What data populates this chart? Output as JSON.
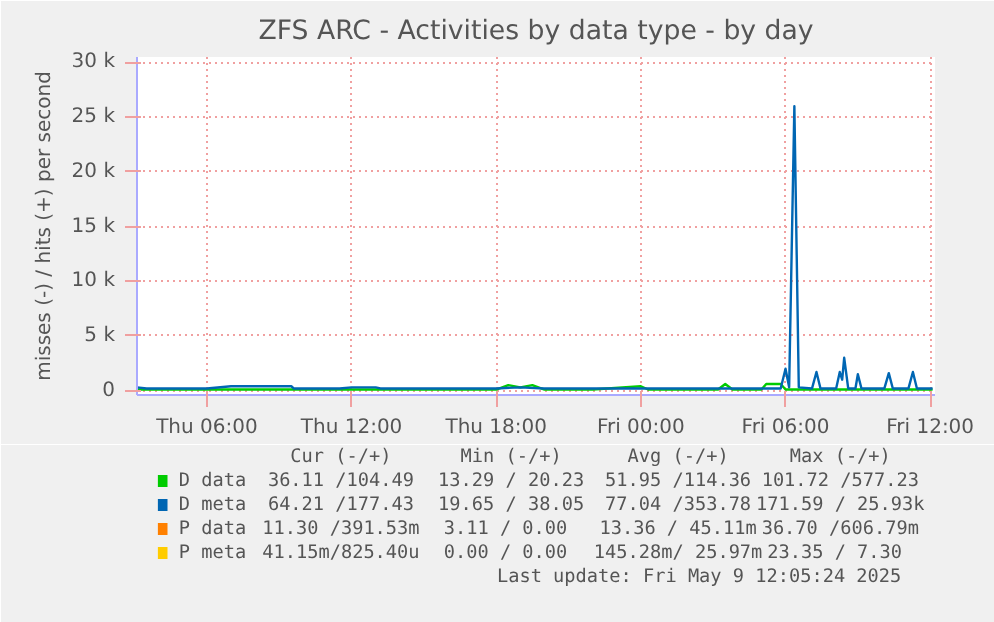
{
  "chart_data": {
    "type": "line",
    "title": "ZFS ARC - Activities by data type - by day",
    "ylabel": "misses (-) / hits (+) per second",
    "xlim": [
      "2025-05-08T03:06",
      "2025-05-09T12:12"
    ],
    "ylim": [
      -400,
      30500
    ],
    "xticks": [
      {
        "value": "2025-05-08T06:00",
        "label": "Thu 06:00"
      },
      {
        "value": "2025-05-08T12:00",
        "label": "Thu 12:00"
      },
      {
        "value": "2025-05-08T18:00",
        "label": "Thu 18:00"
      },
      {
        "value": "2025-05-09T00:00",
        "label": "Fri 00:00"
      },
      {
        "value": "2025-05-09T06:00",
        "label": "Fri 06:00"
      },
      {
        "value": "2025-05-09T12:00",
        "label": "Fri 12:00"
      }
    ],
    "yticks": [
      {
        "value": 0,
        "label": "0"
      },
      {
        "value": 5000,
        "label": "5 k"
      },
      {
        "value": 10000,
        "label": "10 k"
      },
      {
        "value": 15000,
        "label": "15 k"
      },
      {
        "value": 20000,
        "label": "20 k"
      },
      {
        "value": 25000,
        "label": "25 k"
      },
      {
        "value": 30000,
        "label": "30 k"
      }
    ],
    "grid": true,
    "legend": "bottom",
    "series": [
      {
        "name": "D data",
        "color": "#00cc00",
        "x": [
          "2025-05-08T03:06",
          "2025-05-08T06:00",
          "2025-05-08T09:00",
          "2025-05-08T12:00",
          "2025-05-08T15:00",
          "2025-05-08T18:00",
          "2025-05-08T18:30",
          "2025-05-08T19:00",
          "2025-05-08T19:30",
          "2025-05-08T20:00",
          "2025-05-08T22:00",
          "2025-05-09T00:00",
          "2025-05-09T00:18",
          "2025-05-09T02:00",
          "2025-05-09T03:12",
          "2025-05-09T03:30",
          "2025-05-09T03:48",
          "2025-05-09T05:00",
          "2025-05-09T05:12",
          "2025-05-09T05:48",
          "2025-05-09T06:00",
          "2025-05-09T09:00",
          "2025-05-09T12:06"
        ],
        "values": [
          100,
          100,
          100,
          100,
          100,
          100,
          500,
          300,
          500,
          100,
          100,
          400,
          100,
          100,
          100,
          600,
          100,
          100,
          600,
          600,
          100,
          100,
          100
        ]
      },
      {
        "name": "D meta",
        "color": "#0066b3",
        "x": [
          "2025-05-08T03:06",
          "2025-05-08T03:30",
          "2025-05-08T05:00",
          "2025-05-08T06:00",
          "2025-05-08T07:00",
          "2025-05-08T08:00",
          "2025-05-08T09:30",
          "2025-05-08T09:36",
          "2025-05-08T11:30",
          "2025-05-08T12:00",
          "2025-05-08T13:00",
          "2025-05-08T13:12",
          "2025-05-08T18:00",
          "2025-05-08T19:00",
          "2025-05-08T20:00",
          "2025-05-09T00:00",
          "2025-05-09T04:00",
          "2025-05-09T05:48",
          "2025-05-09T06:00",
          "2025-05-09T06:09",
          "2025-05-09T06:22",
          "2025-05-09T06:33",
          "2025-05-09T07:06",
          "2025-05-09T07:17",
          "2025-05-09T07:27",
          "2025-05-09T08:06",
          "2025-05-09T08:15",
          "2025-05-09T08:21",
          "2025-05-09T08:26",
          "2025-05-09T08:36",
          "2025-05-09T08:54",
          "2025-05-09T09:00",
          "2025-05-09T09:09",
          "2025-05-09T10:06",
          "2025-05-09T10:17",
          "2025-05-09T10:27",
          "2025-05-09T11:06",
          "2025-05-09T11:17",
          "2025-05-09T11:27",
          "2025-05-09T12:06"
        ],
        "values": [
          300,
          200,
          200,
          200,
          400,
          400,
          400,
          200,
          200,
          300,
          300,
          200,
          200,
          300,
          200,
          200,
          200,
          200,
          2000,
          300,
          26000,
          300,
          200,
          1700,
          200,
          200,
          1700,
          1000,
          3000,
          200,
          200,
          1500,
          200,
          200,
          1600,
          200,
          200,
          1700,
          200,
          200
        ]
      },
      {
        "name": "P data",
        "color": "#ff8000"
      },
      {
        "name": "P meta",
        "color": "#ffcc00"
      }
    ],
    "annotations": [
      "Cur (-/+)",
      "Min (-/+)",
      "Avg (-/+)",
      "Max (-/+)",
      "36.11 /104.49",
      "13.29 / 20.23",
      "51.95 /114.36",
      "101.72 /577.23",
      "64.21 /177.43",
      "19.65 / 38.05",
      "77.04 /353.78",
      "171.59 / 25.93k",
      "11.30 /391.53m",
      "3.11 /  0.00",
      "13.36 / 45.11m",
      "36.70 /606.79m",
      "41.15m/825.40u",
      "0.00 /  0.00",
      "145.28m/ 25.97m",
      "23.35 /  7.30",
      "Last update: Fri May  9 12:05:24 2025"
    ]
  }
}
